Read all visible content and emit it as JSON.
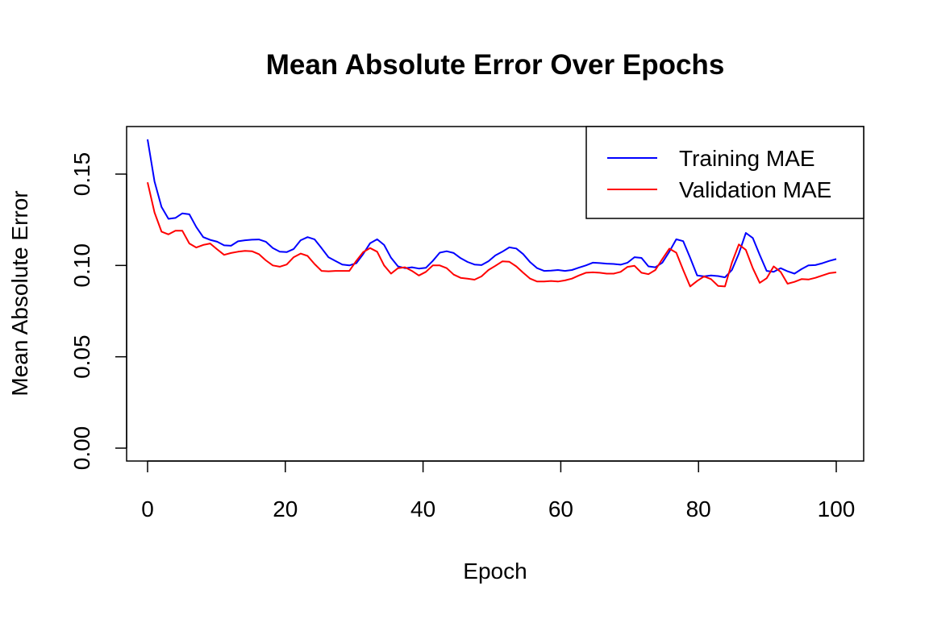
{
  "chart_data": {
    "type": "line",
    "title": "Mean Absolute Error Over Epochs",
    "xlabel": "Epoch",
    "ylabel": "Mean Absolute Error",
    "xlim": [
      1,
      100
    ],
    "ylim": [
      0.0,
      0.165
    ],
    "x_ticks": [
      0,
      20,
      40,
      60,
      80,
      100
    ],
    "x_tick_labels": [
      "0",
      "20",
      "40",
      "60",
      "80",
      "100"
    ],
    "y_ticks": [
      0.0,
      0.05,
      0.1,
      0.15
    ],
    "y_tick_labels": [
      "0.00",
      "0.05",
      "0.10",
      "0.15"
    ],
    "grid": false,
    "legend_position": "top-right",
    "x": [
      1,
      2,
      3,
      4,
      5,
      6,
      7,
      8,
      9,
      10,
      11,
      12,
      13,
      14,
      15,
      16,
      17,
      18,
      19,
      20,
      21,
      22,
      23,
      24,
      25,
      26,
      27,
      28,
      29,
      30,
      31,
      32,
      33,
      34,
      35,
      36,
      37,
      38,
      39,
      40,
      41,
      42,
      43,
      44,
      45,
      46,
      47,
      48,
      49,
      50,
      51,
      52,
      53,
      54,
      55,
      56,
      57,
      58,
      59,
      60,
      61,
      62,
      63,
      64,
      65,
      66,
      67,
      68,
      69,
      70,
      71,
      72,
      73,
      74,
      75,
      76,
      77,
      78,
      79,
      80,
      81,
      82,
      83,
      84,
      85,
      86,
      87,
      88,
      89,
      90,
      91,
      92,
      93,
      94,
      95,
      96,
      97,
      98,
      99,
      100
    ],
    "series": [
      {
        "name": "Training MAE",
        "color": "#0000ff",
        "values": [
          0.169,
          0.146,
          0.132,
          0.1255,
          0.126,
          0.1285,
          0.128,
          0.121,
          0.1155,
          0.114,
          0.113,
          0.111,
          0.1108,
          0.1132,
          0.1138,
          0.1141,
          0.1142,
          0.113,
          0.1095,
          0.1075,
          0.1073,
          0.109,
          0.1138,
          0.1155,
          0.1143,
          0.1095,
          0.1045,
          0.1025,
          0.1005,
          0.1,
          0.1012,
          0.1063,
          0.1122,
          0.1143,
          0.1112,
          0.1042,
          0.0995,
          0.0985,
          0.099,
          0.0983,
          0.0987,
          0.1025,
          0.107,
          0.1078,
          0.1068,
          0.104,
          0.1019,
          0.1005,
          0.1002,
          0.1023,
          0.1055,
          0.1075,
          0.1099,
          0.1093,
          0.1062,
          0.1018,
          0.0985,
          0.097,
          0.0972,
          0.0975,
          0.097,
          0.0975,
          0.0988,
          0.1,
          0.1015,
          0.1013,
          0.101,
          0.1008,
          0.1004,
          0.1015,
          0.1045,
          0.1041,
          0.0995,
          0.099,
          0.1015,
          0.1075,
          0.1143,
          0.1133,
          0.1042,
          0.0945,
          0.094,
          0.0945,
          0.0942,
          0.0935,
          0.0975,
          0.1065,
          0.1178,
          0.115,
          0.1058,
          0.097,
          0.0965,
          0.0985,
          0.0968,
          0.0955,
          0.098,
          0.1,
          0.1002,
          0.1012,
          0.1025,
          0.1035
        ]
      },
      {
        "name": "Validation MAE",
        "color": "#ff0000",
        "values": [
          0.1455,
          0.129,
          0.1185,
          0.117,
          0.119,
          0.119,
          0.112,
          0.1098,
          0.1112,
          0.112,
          0.1088,
          0.1058,
          0.1068,
          0.1075,
          0.108,
          0.1078,
          0.1062,
          0.1028,
          0.1,
          0.0993,
          0.1005,
          0.1045,
          0.1065,
          0.1052,
          0.1008,
          0.097,
          0.0968,
          0.097,
          0.097,
          0.097,
          0.1025,
          0.1073,
          0.1095,
          0.1075,
          0.1,
          0.0955,
          0.0985,
          0.099,
          0.097,
          0.0945,
          0.0965,
          0.1,
          0.1,
          0.0985,
          0.095,
          0.0932,
          0.0928,
          0.0922,
          0.094,
          0.0975,
          0.0998,
          0.1022,
          0.102,
          0.0995,
          0.096,
          0.0928,
          0.0912,
          0.0912,
          0.0915,
          0.0912,
          0.0918,
          0.0928,
          0.0945,
          0.096,
          0.0962,
          0.096,
          0.0955,
          0.0955,
          0.0965,
          0.0992,
          0.0998,
          0.096,
          0.0952,
          0.0975,
          0.1035,
          0.1092,
          0.107,
          0.0975,
          0.0885,
          0.0915,
          0.094,
          0.0925,
          0.0888,
          0.0885,
          0.1015,
          0.1115,
          0.1085,
          0.0985,
          0.0905,
          0.093,
          0.0995,
          0.0965,
          0.09,
          0.091,
          0.0925,
          0.0923,
          0.0932,
          0.0945,
          0.0958,
          0.0962
        ]
      }
    ]
  }
}
